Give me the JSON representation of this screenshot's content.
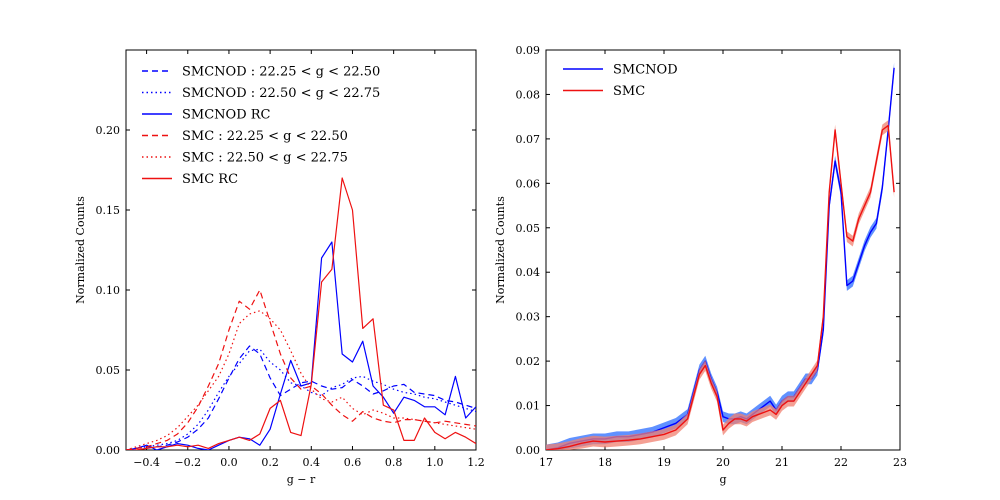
{
  "colors": {
    "blue": "#0000ff",
    "red": "#ee1111",
    "blue_band": "#2b6cff",
    "red_band": "#f08070"
  },
  "chart_data": [
    {
      "type": "line",
      "xlabel": "g − r",
      "ylabel": "Normalized Counts",
      "xlim": [
        -0.5,
        1.2
      ],
      "ylim": [
        0.0,
        0.25
      ],
      "xticks": [
        -0.4,
        -0.2,
        0.0,
        0.2,
        0.4,
        0.6,
        0.8,
        1.0,
        1.2
      ],
      "xtick_labels": [
        "−0.4",
        "−0.2",
        "0.0",
        "0.2",
        "0.4",
        "0.6",
        "0.8",
        "1.0",
        "1.2"
      ],
      "yticks": [
        0.0,
        0.05,
        0.1,
        0.15,
        0.2
      ],
      "ytick_labels": [
        "0.00",
        "0.05",
        "0.10",
        "0.15",
        "0.20"
      ],
      "legend_position": "upper-left",
      "series": [
        {
          "name": "SMCNOD :  22.25 < g < 22.50",
          "color": "blue",
          "style": "dashed",
          "x": [
            -0.5,
            -0.45,
            -0.4,
            -0.35,
            -0.3,
            -0.25,
            -0.2,
            -0.15,
            -0.1,
            -0.05,
            0.0,
            0.05,
            0.1,
            0.15,
            0.2,
            0.25,
            0.3,
            0.35,
            0.4,
            0.45,
            0.5,
            0.55,
            0.6,
            0.65,
            0.7,
            0.75,
            0.8,
            0.85,
            0.9,
            0.95,
            1.0,
            1.05,
            1.1,
            1.15,
            1.2
          ],
          "y": [
            0.0,
            0.001,
            0.002,
            0.002,
            0.003,
            0.005,
            0.008,
            0.013,
            0.02,
            0.032,
            0.045,
            0.057,
            0.065,
            0.06,
            0.045,
            0.034,
            0.038,
            0.042,
            0.043,
            0.04,
            0.038,
            0.039,
            0.044,
            0.04,
            0.035,
            0.037,
            0.04,
            0.041,
            0.036,
            0.035,
            0.034,
            0.031,
            0.03,
            0.028,
            0.026
          ]
        },
        {
          "name": "SMCNOD :  22.50 < g < 22.75",
          "color": "blue",
          "style": "dotted",
          "x": [
            -0.5,
            -0.45,
            -0.4,
            -0.35,
            -0.3,
            -0.25,
            -0.2,
            -0.15,
            -0.1,
            -0.05,
            0.0,
            0.05,
            0.1,
            0.15,
            0.2,
            0.25,
            0.3,
            0.35,
            0.4,
            0.45,
            0.5,
            0.55,
            0.6,
            0.65,
            0.7,
            0.75,
            0.8,
            0.85,
            0.9,
            0.95,
            1.0,
            1.05,
            1.1,
            1.15,
            1.2
          ],
          "y": [
            0.0,
            0.001,
            0.002,
            0.003,
            0.004,
            0.006,
            0.01,
            0.016,
            0.025,
            0.036,
            0.046,
            0.054,
            0.062,
            0.063,
            0.055,
            0.05,
            0.042,
            0.04,
            0.036,
            0.034,
            0.039,
            0.041,
            0.045,
            0.046,
            0.043,
            0.041,
            0.038,
            0.036,
            0.035,
            0.033,
            0.032,
            0.03,
            0.028,
            0.026,
            0.024
          ]
        },
        {
          "name": "SMCNOD RC",
          "color": "blue",
          "style": "solid",
          "x": [
            -0.5,
            -0.45,
            -0.4,
            -0.35,
            -0.3,
            -0.25,
            -0.2,
            -0.15,
            -0.1,
            -0.05,
            0.0,
            0.05,
            0.1,
            0.15,
            0.2,
            0.25,
            0.3,
            0.35,
            0.4,
            0.45,
            0.5,
            0.55,
            0.6,
            0.65,
            0.7,
            0.75,
            0.8,
            0.85,
            0.9,
            0.95,
            1.0,
            1.05,
            1.1,
            1.15,
            1.2
          ],
          "y": [
            0.0,
            0.001,
            0.003,
            0.0,
            0.002,
            0.004,
            0.003,
            0.001,
            0.0,
            0.003,
            0.006,
            0.008,
            0.007,
            0.003,
            0.013,
            0.035,
            0.056,
            0.04,
            0.042,
            0.12,
            0.13,
            0.06,
            0.055,
            0.068,
            0.04,
            0.033,
            0.023,
            0.033,
            0.031,
            0.027,
            0.027,
            0.022,
            0.046,
            0.02,
            0.027
          ]
        },
        {
          "name": "SMC :  22.25 < g < 22.50",
          "color": "red",
          "style": "dashed",
          "x": [
            -0.5,
            -0.45,
            -0.4,
            -0.35,
            -0.3,
            -0.25,
            -0.2,
            -0.15,
            -0.1,
            -0.05,
            0.0,
            0.05,
            0.1,
            0.15,
            0.2,
            0.25,
            0.3,
            0.35,
            0.4,
            0.45,
            0.5,
            0.55,
            0.6,
            0.65,
            0.7,
            0.75,
            0.8,
            0.85,
            0.9,
            0.95,
            1.0,
            1.05,
            1.1,
            1.15,
            1.2
          ],
          "y": [
            0.0,
            0.001,
            0.002,
            0.004,
            0.006,
            0.01,
            0.017,
            0.027,
            0.04,
            0.054,
            0.075,
            0.093,
            0.088,
            0.1,
            0.08,
            0.06,
            0.045,
            0.038,
            0.04,
            0.035,
            0.028,
            0.022,
            0.018,
            0.024,
            0.02,
            0.018,
            0.017,
            0.019,
            0.019,
            0.018,
            0.017,
            0.018,
            0.017,
            0.016,
            0.015
          ]
        },
        {
          "name": "SMC :  22.50 < g < 22.75",
          "color": "red",
          "style": "dotted",
          "x": [
            -0.5,
            -0.45,
            -0.4,
            -0.35,
            -0.3,
            -0.25,
            -0.2,
            -0.15,
            -0.1,
            -0.05,
            0.0,
            0.05,
            0.1,
            0.15,
            0.2,
            0.25,
            0.3,
            0.35,
            0.4,
            0.45,
            0.5,
            0.55,
            0.6,
            0.65,
            0.7,
            0.75,
            0.8,
            0.85,
            0.9,
            0.95,
            1.0,
            1.05,
            1.1,
            1.15,
            1.2
          ],
          "y": [
            0.0,
            0.002,
            0.004,
            0.006,
            0.009,
            0.014,
            0.021,
            0.028,
            0.037,
            0.046,
            0.06,
            0.079,
            0.085,
            0.087,
            0.082,
            0.075,
            0.062,
            0.048,
            0.038,
            0.032,
            0.03,
            0.033,
            0.026,
            0.022,
            0.025,
            0.023,
            0.02,
            0.02,
            0.019,
            0.018,
            0.017,
            0.016,
            0.015,
            0.014,
            0.013
          ]
        },
        {
          "name": "SMC RC",
          "color": "red",
          "style": "solid",
          "x": [
            -0.5,
            -0.45,
            -0.4,
            -0.35,
            -0.3,
            -0.25,
            -0.2,
            -0.15,
            -0.1,
            -0.05,
            0.0,
            0.05,
            0.1,
            0.15,
            0.2,
            0.25,
            0.3,
            0.35,
            0.4,
            0.45,
            0.5,
            0.55,
            0.6,
            0.65,
            0.7,
            0.75,
            0.8,
            0.85,
            0.9,
            0.95,
            1.0,
            1.05,
            1.1,
            1.15,
            1.2
          ],
          "y": [
            0.0,
            0.0,
            0.001,
            0.002,
            0.002,
            0.003,
            0.002,
            0.003,
            0.001,
            0.004,
            0.006,
            0.008,
            0.006,
            0.01,
            0.026,
            0.031,
            0.011,
            0.009,
            0.041,
            0.105,
            0.113,
            0.17,
            0.15,
            0.076,
            0.082,
            0.028,
            0.025,
            0.006,
            0.006,
            0.02,
            0.011,
            0.007,
            0.011,
            0.008,
            0.004
          ]
        }
      ]
    },
    {
      "type": "line",
      "xlabel": "g",
      "ylabel": "Normalized Counts",
      "xlim": [
        17,
        23
      ],
      "ylim": [
        0.0,
        0.09
      ],
      "xticks": [
        17,
        18,
        19,
        20,
        21,
        22,
        23
      ],
      "xtick_labels": [
        "17",
        "18",
        "19",
        "20",
        "21",
        "22",
        "23"
      ],
      "yticks": [
        0.0,
        0.01,
        0.02,
        0.03,
        0.04,
        0.05,
        0.06,
        0.07,
        0.08,
        0.09
      ],
      "ytick_labels": [
        "0.00",
        "0.01",
        "0.02",
        "0.03",
        "0.04",
        "0.05",
        "0.06",
        "0.07",
        "0.08",
        "0.09"
      ],
      "legend_position": "upper-left",
      "series": [
        {
          "name": "SMCNOD",
          "color": "blue",
          "band": "blue_band",
          "band_width": 0.0012,
          "x": [
            17.0,
            17.2,
            17.4,
            17.6,
            17.8,
            18.0,
            18.2,
            18.4,
            18.6,
            18.8,
            19.0,
            19.2,
            19.4,
            19.5,
            19.6,
            19.7,
            19.8,
            19.9,
            20.0,
            20.1,
            20.2,
            20.3,
            20.4,
            20.5,
            20.6,
            20.7,
            20.8,
            20.9,
            21.0,
            21.1,
            21.2,
            21.3,
            21.4,
            21.5,
            21.6,
            21.7,
            21.8,
            21.9,
            22.0,
            22.1,
            22.2,
            22.3,
            22.4,
            22.5,
            22.6,
            22.7,
            22.8,
            22.9
          ],
          "y": [
            0.0,
            0.0005,
            0.0015,
            0.002,
            0.0025,
            0.0025,
            0.003,
            0.003,
            0.0035,
            0.004,
            0.005,
            0.006,
            0.008,
            0.013,
            0.018,
            0.02,
            0.016,
            0.013,
            0.0075,
            0.007,
            0.007,
            0.0075,
            0.007,
            0.008,
            0.009,
            0.01,
            0.011,
            0.009,
            0.011,
            0.012,
            0.012,
            0.014,
            0.016,
            0.016,
            0.018,
            0.027,
            0.055,
            0.065,
            0.058,
            0.037,
            0.038,
            0.042,
            0.046,
            0.049,
            0.051,
            0.059,
            0.072,
            0.086
          ]
        },
        {
          "name": "SMC",
          "color": "red",
          "band": "red_band",
          "band_width": 0.0012,
          "x": [
            17.0,
            17.2,
            17.4,
            17.6,
            17.8,
            18.0,
            18.2,
            18.4,
            18.6,
            18.8,
            19.0,
            19.2,
            19.4,
            19.5,
            19.6,
            19.7,
            19.8,
            19.9,
            20.0,
            20.1,
            20.2,
            20.3,
            20.4,
            20.5,
            20.6,
            20.7,
            20.8,
            20.9,
            21.0,
            21.1,
            21.2,
            21.3,
            21.4,
            21.5,
            21.6,
            21.7,
            21.8,
            21.9,
            22.0,
            22.1,
            22.2,
            22.3,
            22.4,
            22.5,
            22.6,
            22.7,
            22.8,
            22.9
          ],
          "y": [
            0.0,
            0.0003,
            0.0008,
            0.0015,
            0.002,
            0.0018,
            0.002,
            0.0022,
            0.0025,
            0.003,
            0.0035,
            0.0045,
            0.007,
            0.012,
            0.017,
            0.019,
            0.015,
            0.012,
            0.0045,
            0.006,
            0.007,
            0.007,
            0.0065,
            0.0075,
            0.008,
            0.0085,
            0.009,
            0.008,
            0.01,
            0.011,
            0.011,
            0.013,
            0.015,
            0.017,
            0.019,
            0.03,
            0.058,
            0.072,
            0.06,
            0.048,
            0.047,
            0.052,
            0.055,
            0.058,
            0.065,
            0.072,
            0.073,
            0.058
          ]
        }
      ]
    }
  ]
}
